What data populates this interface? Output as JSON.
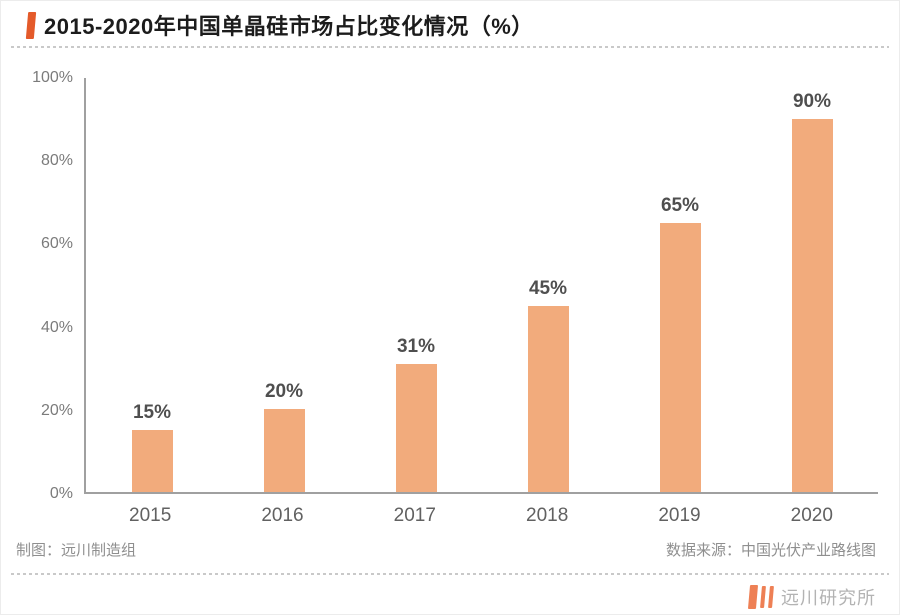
{
  "header": {
    "title": "2015-2020年中国单晶硅市场占比变化情况（%）"
  },
  "chart_data": {
    "type": "bar",
    "title": "2015-2020年中国单晶硅市场占比变化情况（%）",
    "categories": [
      "2015",
      "2016",
      "2017",
      "2018",
      "2019",
      "2020"
    ],
    "values": [
      15,
      20,
      31,
      45,
      65,
      90
    ],
    "value_labels": [
      "15%",
      "20%",
      "31%",
      "45%",
      "65%",
      "90%"
    ],
    "xlabel": "",
    "ylabel": "",
    "ylim": [
      0,
      100
    ],
    "y_ticks": [
      0,
      20,
      40,
      60,
      80,
      100
    ],
    "y_tick_labels": [
      "0%",
      "20%",
      "40%",
      "60%",
      "80%",
      "100%"
    ],
    "grid": false,
    "legend": false,
    "bar_color": "#f2ab7c",
    "accent_color": "#e45a2a"
  },
  "footer": {
    "credit": "制图：远川制造组",
    "source": "数据来源：中国光伏产业路线图",
    "brand": "远川研究所"
  }
}
